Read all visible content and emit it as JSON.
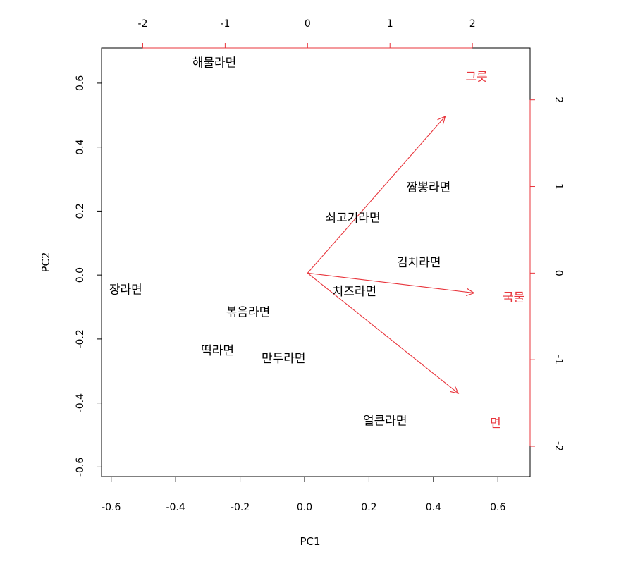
{
  "chart_data": {
    "type": "scatter",
    "subtype": "biplot",
    "title": "",
    "xlabel": "PC1",
    "ylabel": "PC2",
    "xlim": [
      -0.63,
      0.7
    ],
    "ylim": [
      -0.63,
      0.71
    ],
    "xticks": [
      "-0.6",
      "-0.4",
      "-0.2",
      "0.0",
      "0.2",
      "0.4",
      "0.6"
    ],
    "yticks": [
      "-0.6",
      "-0.4",
      "-0.2",
      "0.0",
      "0.2",
      "0.4",
      "0.6"
    ],
    "top_axis": {
      "range": [
        -2.5,
        2.7
      ],
      "ticks": [
        "-2",
        "-1",
        "0",
        "1",
        "2"
      ],
      "color": "#e8343b"
    },
    "right_axis": {
      "range": [
        -2.35,
        2.6
      ],
      "ticks": [
        "-2",
        "-1",
        "0",
        "1",
        "2"
      ],
      "color": "#e8343b"
    },
    "points": [
      {
        "label": "해물라면",
        "x": -0.28,
        "y": 0.665
      },
      {
        "label": "짬뽕라면",
        "x": 0.385,
        "y": 0.275
      },
      {
        "label": "쇠고기라면",
        "x": 0.15,
        "y": 0.18
      },
      {
        "label": "김치라면",
        "x": 0.355,
        "y": 0.04
      },
      {
        "label": "장라면",
        "x": -0.555,
        "y": -0.045
      },
      {
        "label": "치즈라면",
        "x": 0.155,
        "y": -0.05
      },
      {
        "label": "볶음라면",
        "x": -0.175,
        "y": -0.115
      },
      {
        "label": "떡라면",
        "x": -0.27,
        "y": -0.235
      },
      {
        "label": "만두라면",
        "x": -0.065,
        "y": -0.26
      },
      {
        "label": "얼큰라면",
        "x": 0.25,
        "y": -0.455
      }
    ],
    "loadings": [
      {
        "label": "그릇",
        "x": 1.67,
        "y": 1.81,
        "label_x": 2.05,
        "label_y": 2.27
      },
      {
        "label": "국물",
        "x": 2.02,
        "y": -0.23,
        "label_x": 2.5,
        "label_y": -0.28
      },
      {
        "label": "면",
        "x": 1.83,
        "y": -1.39,
        "label_x": 2.28,
        "label_y": -1.73
      }
    ],
    "colors": {
      "points": "#000000",
      "loadings": "#e8343b"
    }
  }
}
